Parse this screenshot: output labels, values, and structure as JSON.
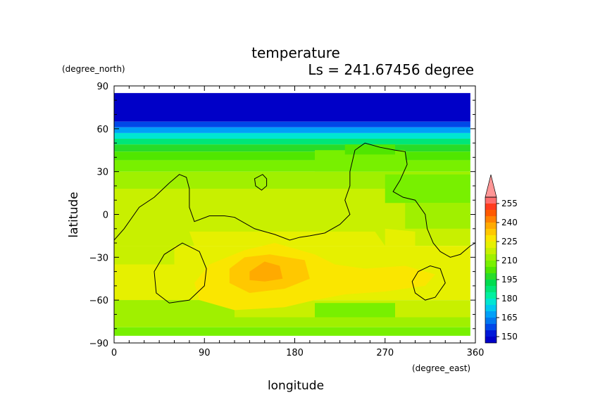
{
  "chart_data": {
    "type": "heatmap",
    "title": "temperature",
    "subtitle": "Ls = 241.67456 degree",
    "xlabel": "longitude",
    "ylabel": "latitude",
    "x_units": "(degree_east)",
    "y_units": "(degree_north)",
    "xlim": [
      0,
      360
    ],
    "ylim": [
      -90,
      90
    ],
    "x_ticks": [
      0,
      90,
      180,
      270,
      360
    ],
    "y_ticks": [
      90,
      60,
      30,
      0,
      -30,
      -60,
      -90
    ],
    "x_tick_labels": [
      "0",
      "90",
      "180",
      "270",
      "360"
    ],
    "y_tick_labels": [
      "90",
      "60",
      "30",
      "0",
      "−30",
      "−60",
      "−90"
    ],
    "grid": false,
    "colorbar": {
      "levels": [
        145,
        150,
        155,
        160,
        165,
        170,
        175,
        180,
        185,
        190,
        195,
        200,
        205,
        210,
        215,
        220,
        225,
        230,
        235,
        240,
        245,
        250,
        255,
        260
      ],
      "labels": [
        "150",
        "165",
        "180",
        "195",
        "210",
        "225",
        "240",
        "255"
      ],
      "label_values": [
        150,
        165,
        180,
        195,
        210,
        225,
        240,
        255
      ],
      "colors": [
        "#0000c8",
        "#0018d8",
        "#0048e8",
        "#0078f0",
        "#00a0f8",
        "#00c8f0",
        "#00e6d2",
        "#00f0a0",
        "#00e678",
        "#00dc50",
        "#28dc28",
        "#50e600",
        "#78f000",
        "#a0f000",
        "#c8f000",
        "#e6f000",
        "#fae600",
        "#ffc800",
        "#ffaa00",
        "#ff8200",
        "#ff5a00",
        "#ff3c1e",
        "#ff6e6e",
        "#ff9696"
      ],
      "extend": "max"
    },
    "bands": [
      {
        "lat": [
          85,
          65
        ],
        "value": 147
      },
      {
        "lat": [
          65,
          61
        ],
        "value": 157
      },
      {
        "lat": [
          61,
          57
        ],
        "value": 167
      },
      {
        "lat": [
          57,
          53
        ],
        "value": 177
      },
      {
        "lat": [
          53,
          49
        ],
        "value": 187
      },
      {
        "lat": [
          49,
          44
        ],
        "value": 197
      },
      {
        "lat": [
          44,
          38
        ],
        "value": 202
      },
      {
        "lat": [
          38,
          30
        ],
        "value": 207
      },
      {
        "lat": [
          30,
          18
        ],
        "value": 212
      },
      {
        "lat": [
          18,
          -22
        ],
        "value": 217
      },
      {
        "lat": [
          -22,
          -60
        ],
        "value": 222
      },
      {
        "lat": [
          -60,
          -72
        ],
        "value": 217
      },
      {
        "lat": [
          -72,
          -79
        ],
        "value": 212
      },
      {
        "lat": [
          -79,
          -85
        ],
        "value": 207
      }
    ],
    "regions": [
      {
        "value": 207,
        "points": [
          [
            270,
            8
          ],
          [
            360,
            8
          ],
          [
            360,
            28
          ],
          [
            270,
            28
          ]
        ]
      },
      {
        "value": 207,
        "points": [
          [
            200,
            30
          ],
          [
            290,
            30
          ],
          [
            290,
            45
          ],
          [
            200,
            45
          ]
        ]
      },
      {
        "value": 202,
        "points": [
          [
            230,
            42
          ],
          [
            280,
            42
          ],
          [
            280,
            49
          ],
          [
            230,
            49
          ]
        ]
      },
      {
        "value": 212,
        "points": [
          [
            290,
            -10
          ],
          [
            360,
            -10
          ],
          [
            360,
            8
          ],
          [
            290,
            8
          ]
        ]
      },
      {
        "value": 222,
        "points": [
          [
            75,
            -12
          ],
          [
            260,
            -12
          ],
          [
            270,
            -22
          ],
          [
            80,
            -22
          ]
        ]
      },
      {
        "value": 222,
        "points": [
          [
            270,
            -10
          ],
          [
            300,
            -12
          ],
          [
            300,
            -22
          ],
          [
            270,
            -22
          ]
        ]
      },
      {
        "value": 217,
        "points": [
          [
            0,
            -22
          ],
          [
            60,
            -22
          ],
          [
            60,
            -35
          ],
          [
            0,
            -35
          ]
        ]
      },
      {
        "value": 212,
        "points": [
          [
            0,
            -60
          ],
          [
            120,
            -60
          ],
          [
            120,
            -72
          ],
          [
            0,
            -72
          ]
        ]
      },
      {
        "value": 207,
        "points": [
          [
            200,
            -62
          ],
          [
            280,
            -62
          ],
          [
            280,
            -72
          ],
          [
            200,
            -72
          ]
        ]
      },
      {
        "value": 227,
        "points": [
          [
            80,
            -48
          ],
          [
            95,
            -35
          ],
          [
            130,
            -25
          ],
          [
            160,
            -20
          ],
          [
            200,
            -28
          ],
          [
            220,
            -35
          ],
          [
            250,
            -38
          ],
          [
            290,
            -36
          ],
          [
            320,
            -42
          ],
          [
            310,
            -50
          ],
          [
            270,
            -54
          ],
          [
            230,
            -56
          ],
          [
            200,
            -60
          ],
          [
            170,
            -65
          ],
          [
            120,
            -67
          ],
          [
            85,
            -60
          ]
        ]
      },
      {
        "value": 232,
        "points": [
          [
            115,
            -38
          ],
          [
            130,
            -30
          ],
          [
            155,
            -28
          ],
          [
            190,
            -32
          ],
          [
            195,
            -45
          ],
          [
            170,
            -52
          ],
          [
            135,
            -55
          ],
          [
            115,
            -48
          ]
        ]
      },
      {
        "value": 237,
        "points": [
          [
            135,
            -40
          ],
          [
            150,
            -33
          ],
          [
            165,
            -36
          ],
          [
            168,
            -45
          ],
          [
            150,
            -47
          ],
          [
            135,
            -46
          ]
        ]
      }
    ],
    "contours": [
      {
        "closed": false,
        "points": [
          [
            0,
            -18
          ],
          [
            10,
            -10
          ],
          [
            25,
            5
          ],
          [
            40,
            12
          ],
          [
            55,
            22
          ],
          [
            65,
            28
          ],
          [
            72,
            26
          ],
          [
            75,
            18
          ],
          [
            75,
            5
          ],
          [
            80,
            -5
          ],
          [
            95,
            -1
          ],
          [
            110,
            -1
          ],
          [
            120,
            -2
          ],
          [
            130,
            -6
          ],
          [
            140,
            -10
          ],
          [
            150,
            -12
          ],
          [
            160,
            -14
          ],
          [
            175,
            -18
          ],
          [
            185,
            -16
          ],
          [
            195,
            -15
          ],
          [
            210,
            -13
          ],
          [
            225,
            -7
          ],
          [
            235,
            0
          ],
          [
            230,
            10
          ],
          [
            235,
            20
          ],
          [
            235,
            30
          ],
          [
            240,
            45
          ],
          [
            250,
            50
          ],
          [
            265,
            47
          ],
          [
            280,
            45
          ],
          [
            290,
            44
          ],
          [
            292,
            35
          ],
          [
            285,
            24
          ],
          [
            278,
            16
          ],
          [
            288,
            12
          ],
          [
            300,
            10
          ],
          [
            310,
            0
          ],
          [
            312,
            -10
          ],
          [
            318,
            -20
          ],
          [
            325,
            -26
          ],
          [
            335,
            -30
          ],
          [
            345,
            -28
          ],
          [
            355,
            -22
          ],
          [
            360,
            -20
          ]
        ]
      },
      {
        "closed": true,
        "points": [
          [
            140,
            25
          ],
          [
            148,
            28
          ],
          [
            152,
            25
          ],
          [
            152,
            20
          ],
          [
            147,
            17
          ],
          [
            141,
            20
          ]
        ]
      },
      {
        "closed": true,
        "points": [
          [
            40,
            -40
          ],
          [
            50,
            -28
          ],
          [
            68,
            -20
          ],
          [
            85,
            -26
          ],
          [
            92,
            -38
          ],
          [
            90,
            -50
          ],
          [
            75,
            -60
          ],
          [
            55,
            -62
          ],
          [
            42,
            -55
          ]
        ]
      },
      {
        "closed": true,
        "points": [
          [
            303,
            -40
          ],
          [
            315,
            -36
          ],
          [
            325,
            -38
          ],
          [
            330,
            -48
          ],
          [
            320,
            -58
          ],
          [
            310,
            -60
          ],
          [
            300,
            -55
          ],
          [
            297,
            -47
          ]
        ]
      }
    ]
  }
}
